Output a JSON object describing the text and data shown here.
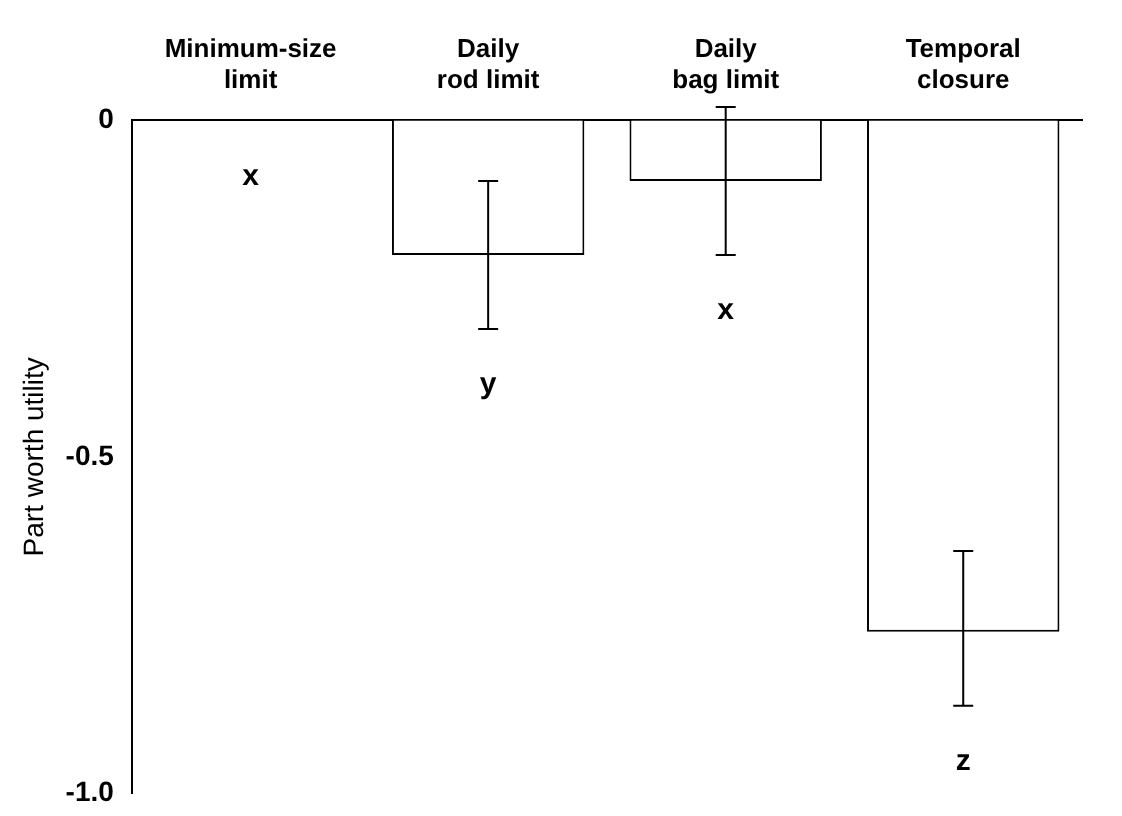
{
  "chart_data": {
    "type": "bar",
    "categories": [
      "Minimum-size\nlimit",
      "Daily\nrod limit",
      "Daily\nbag limit",
      "Temporal\nclosure"
    ],
    "values": [
      0,
      -0.2,
      -0.09,
      -0.76
    ],
    "errors": [
      null,
      [
        -0.31,
        -0.09
      ],
      [
        -0.2,
        0.02
      ],
      [
        -0.87,
        -0.64
      ]
    ],
    "color": "#ffffff",
    "ylabel": "Part worth utility",
    "ylim": [
      -1,
      0
    ],
    "yticks": [
      {
        "value": -1,
        "label": "-1.0"
      },
      -0.5,
      0
    ],
    "grid": false,
    "legend": false,
    "annotations": [
      "x",
      "y",
      "x",
      "z"
    ]
  }
}
